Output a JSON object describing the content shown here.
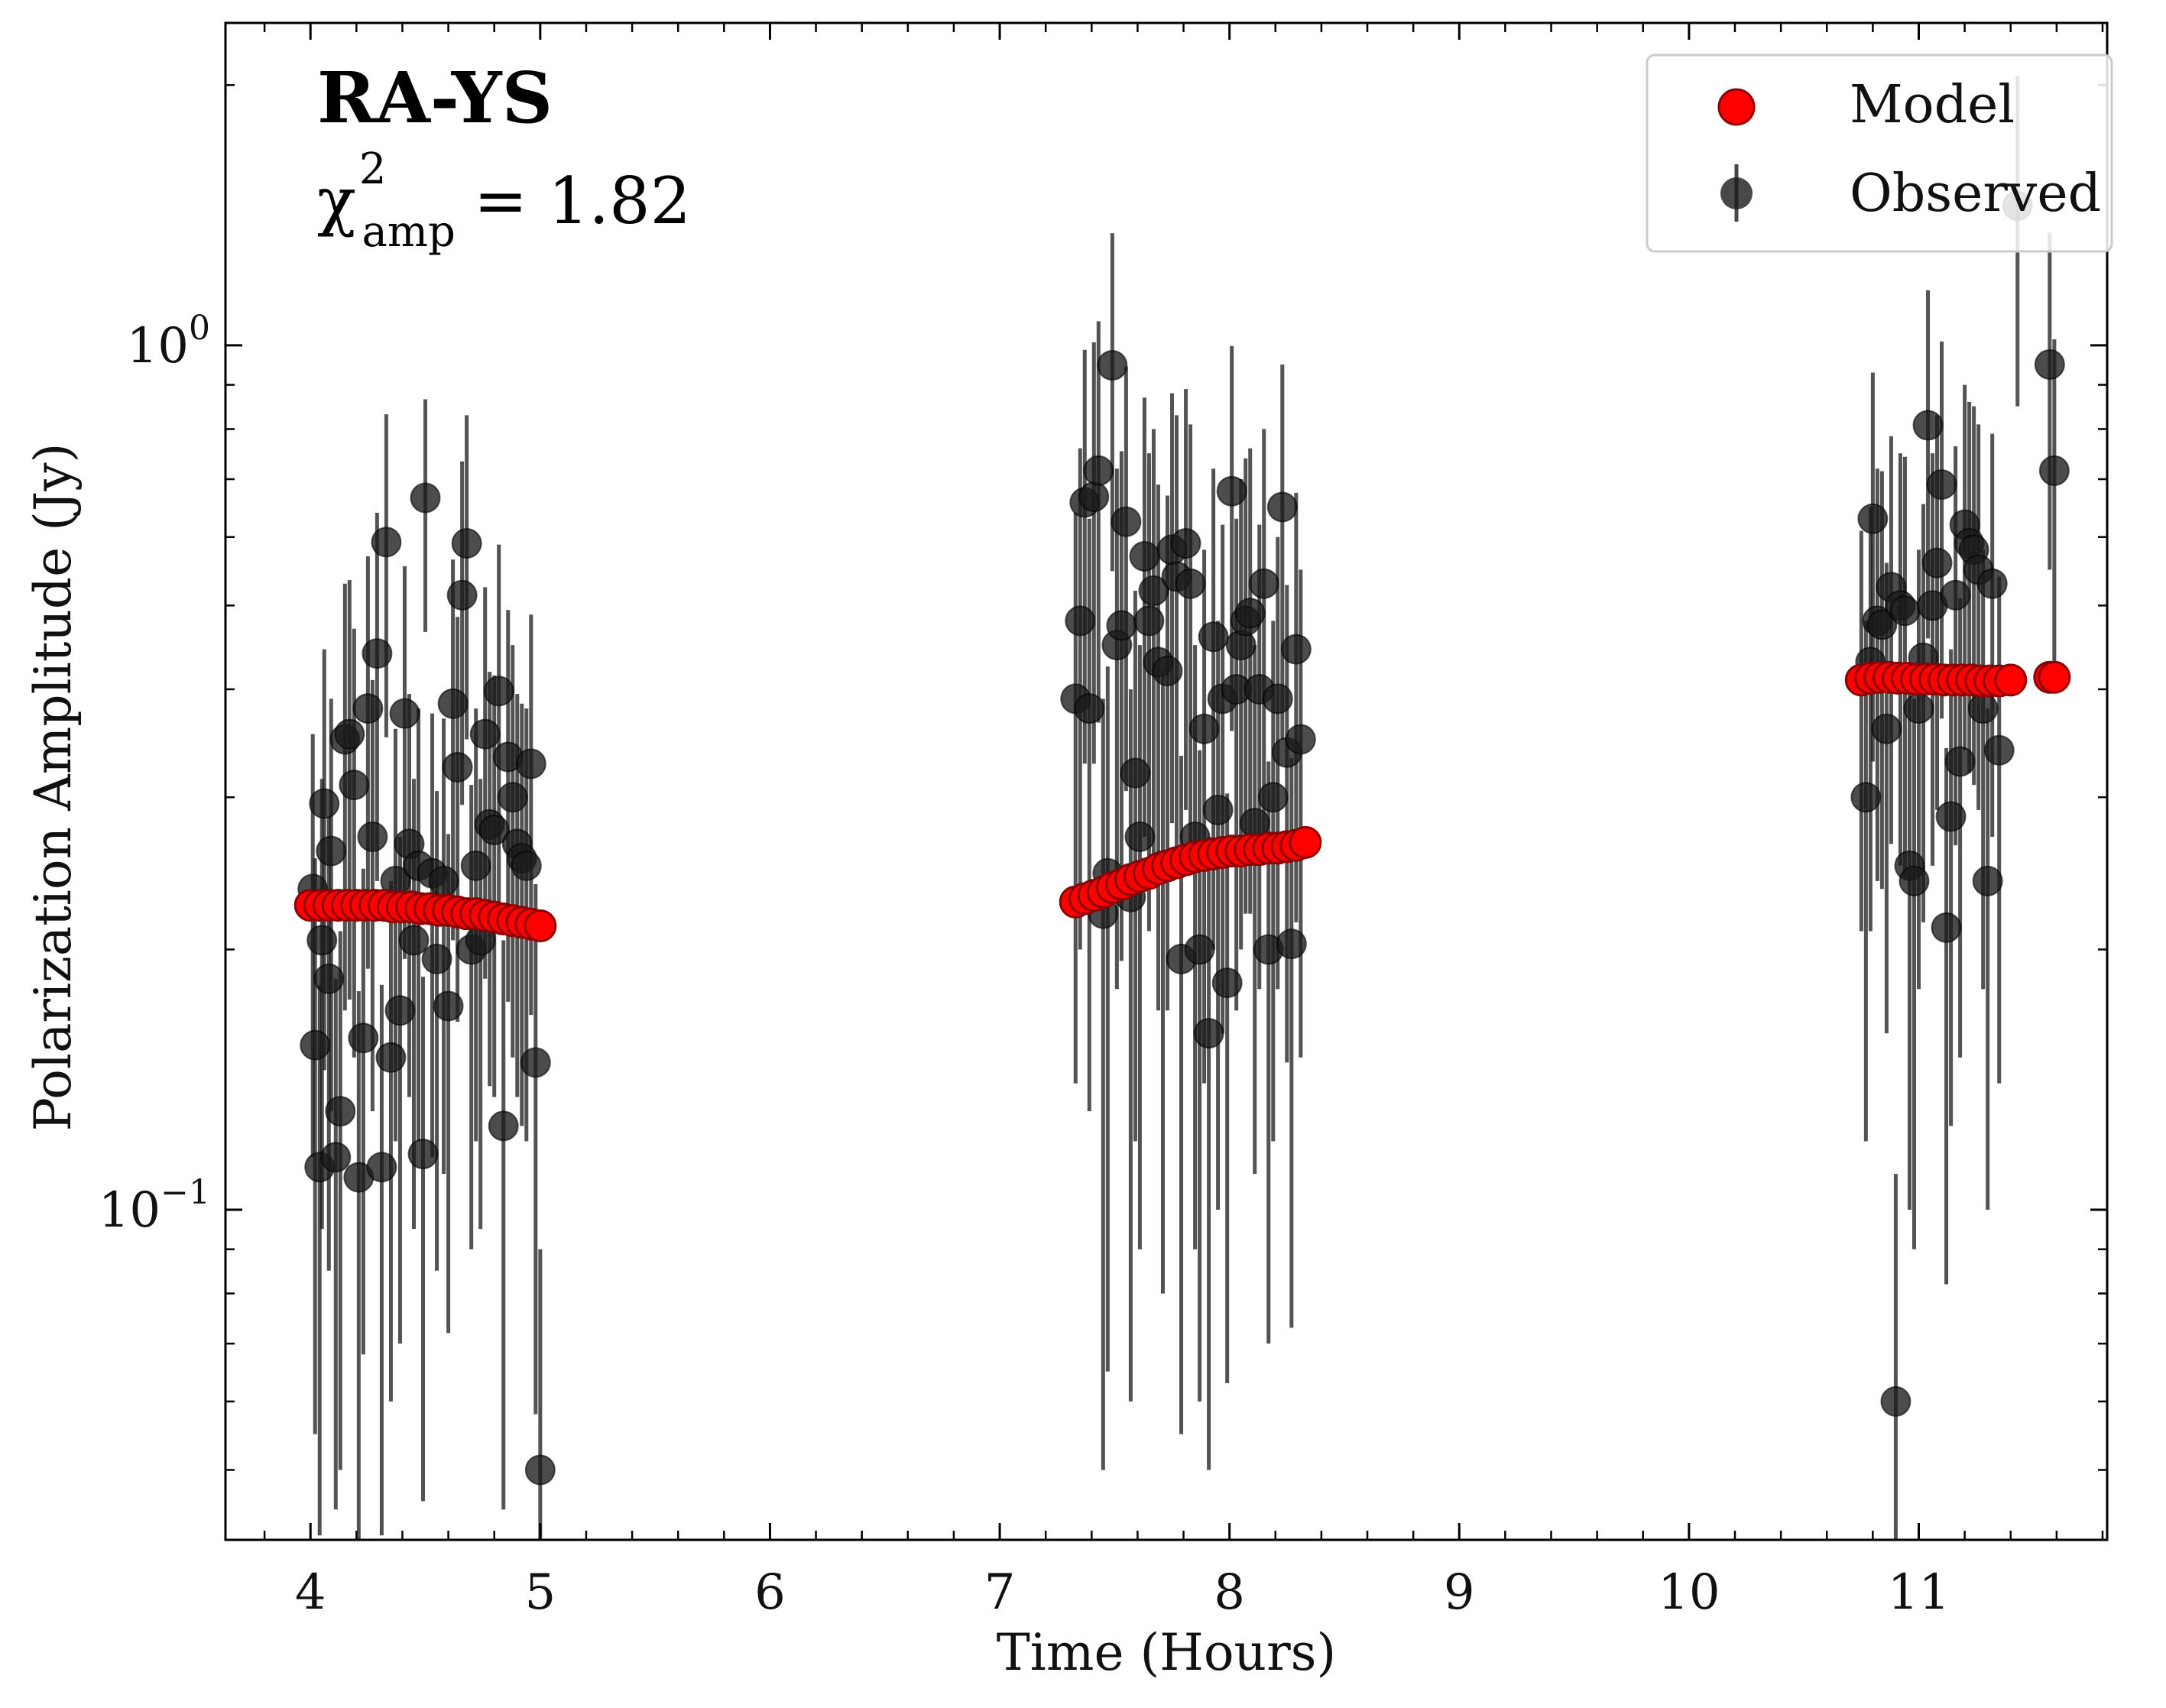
{
  "chart_data": {
    "type": "scatter",
    "title": "RA-YS",
    "annotation": {
      "chi_symbol": "χ",
      "chi_superscript": "2",
      "chi_subscript": "amp",
      "chi_value": "= 1.82"
    },
    "xlabel": "Time (Hours)",
    "ylabel": "Polarization Amplitude (Jy)",
    "xlim": [
      3.63,
      11.82
    ],
    "ylim": [
      0.0415,
      2.36
    ],
    "yscale": "log",
    "x_ticks": [
      4,
      5,
      6,
      7,
      8,
      9,
      10,
      11
    ],
    "x_tick_labels": [
      "4",
      "5",
      "6",
      "7",
      "8",
      "9",
      "10",
      "11"
    ],
    "y_ticks": [
      {
        "value": 1.0,
        "base": "10",
        "exp": "0"
      },
      {
        "value": 0.1,
        "base": "10",
        "exp": "−1"
      }
    ],
    "legend": {
      "position": "top-right",
      "entries": [
        "Model",
        "Observed"
      ]
    },
    "colors": {
      "model": "#ff0000",
      "model_edge": "#8b0000",
      "observed": "#1a1a1a"
    },
    "series": [
      {
        "name": "Model",
        "marker": "circle",
        "x": [
          4.0,
          4.04,
          4.08,
          4.12,
          4.16,
          4.2,
          4.24,
          4.28,
          4.32,
          4.36,
          4.4,
          4.44,
          4.48,
          4.52,
          4.56,
          4.6,
          4.64,
          4.68,
          4.72,
          4.76,
          4.8,
          4.84,
          4.88,
          4.92,
          4.96,
          5.0,
          7.33,
          7.37,
          7.41,
          7.45,
          7.49,
          7.53,
          7.57,
          7.61,
          7.65,
          7.69,
          7.73,
          7.77,
          7.81,
          7.85,
          7.89,
          7.93,
          7.97,
          8.01,
          8.05,
          8.09,
          8.13,
          8.17,
          8.21,
          8.25,
          8.29,
          8.33,
          10.75,
          10.79,
          10.83,
          10.87,
          10.91,
          10.95,
          10.99,
          11.03,
          11.07,
          11.11,
          11.15,
          11.19,
          11.23,
          11.27,
          11.31,
          11.35,
          11.4,
          11.57,
          11.59
        ],
        "y": [
          0.225,
          0.225,
          0.225,
          0.225,
          0.225,
          0.225,
          0.225,
          0.225,
          0.225,
          0.224,
          0.224,
          0.224,
          0.223,
          0.223,
          0.222,
          0.222,
          0.221,
          0.22,
          0.22,
          0.219,
          0.218,
          0.217,
          0.216,
          0.215,
          0.214,
          0.213,
          0.227,
          0.229,
          0.231,
          0.233,
          0.236,
          0.238,
          0.241,
          0.243,
          0.245,
          0.248,
          0.25,
          0.252,
          0.254,
          0.256,
          0.257,
          0.258,
          0.259,
          0.26,
          0.26,
          0.261,
          0.261,
          0.262,
          0.262,
          0.263,
          0.264,
          0.266,
          0.41,
          0.412,
          0.413,
          0.413,
          0.412,
          0.412,
          0.411,
          0.411,
          0.411,
          0.41,
          0.41,
          0.41,
          0.41,
          0.409,
          0.409,
          0.409,
          0.41,
          0.413,
          0.413
        ]
      },
      {
        "name": "Observed",
        "marker": "circle",
        "x": [
          4.01,
          4.02,
          4.04,
          4.05,
          4.06,
          4.08,
          4.09,
          4.11,
          4.13,
          4.15,
          4.17,
          4.19,
          4.21,
          4.23,
          4.25,
          4.27,
          4.29,
          4.31,
          4.33,
          4.35,
          4.37,
          4.39,
          4.41,
          4.43,
          4.45,
          4.47,
          4.49,
          4.5,
          4.53,
          4.55,
          4.58,
          4.6,
          4.62,
          4.64,
          4.66,
          4.68,
          4.7,
          4.72,
          4.74,
          4.76,
          4.78,
          4.8,
          4.82,
          4.84,
          4.86,
          4.88,
          4.9,
          4.92,
          4.94,
          4.96,
          4.98,
          5.0,
          7.33,
          7.35,
          7.37,
          7.39,
          7.41,
          7.43,
          7.45,
          7.47,
          7.49,
          7.51,
          7.53,
          7.55,
          7.57,
          7.59,
          7.61,
          7.63,
          7.65,
          7.67,
          7.69,
          7.71,
          7.73,
          7.75,
          7.77,
          7.79,
          7.81,
          7.83,
          7.85,
          7.87,
          7.89,
          7.91,
          7.93,
          7.95,
          7.97,
          7.99,
          8.01,
          8.03,
          8.05,
          8.07,
          8.09,
          8.11,
          8.13,
          8.15,
          8.17,
          8.19,
          8.21,
          8.23,
          8.25,
          8.27,
          8.29,
          8.31,
          10.75,
          10.77,
          10.79,
          10.8,
          10.82,
          10.84,
          10.86,
          10.88,
          10.9,
          10.92,
          10.94,
          10.96,
          10.98,
          11.0,
          11.02,
          11.04,
          11.06,
          11.08,
          11.1,
          11.12,
          11.14,
          11.16,
          11.18,
          11.2,
          11.22,
          11.24,
          11.26,
          11.28,
          11.3,
          11.32,
          11.35,
          11.43,
          11.57,
          11.59
        ],
        "y": [
          0.235,
          0.155,
          0.112,
          0.205,
          0.295,
          0.185,
          0.26,
          0.115,
          0.13,
          0.35,
          0.355,
          0.31,
          0.109,
          0.158,
          0.38,
          0.27,
          0.44,
          0.112,
          0.592,
          0.15,
          0.24,
          0.17,
          0.375,
          0.265,
          0.205,
          0.25,
          0.116,
          0.666,
          0.245,
          0.195,
          0.24,
          0.172,
          0.385,
          0.325,
          0.514,
          0.59,
          0.2,
          0.25,
          0.205,
          0.355,
          0.279,
          0.275,
          0.398,
          0.125,
          0.334,
          0.3,
          0.265,
          0.255,
          0.25,
          0.328,
          0.148,
          0.05,
          0.39,
          0.48,
          0.658,
          0.38,
          0.668,
          0.716,
          0.22,
          0.245,
          0.948,
          0.45,
          0.474,
          0.625,
          0.23,
          0.32,
          0.27,
          0.57,
          0.48,
          0.52,
          0.43,
          0.25,
          0.42,
          0.58,
          0.54,
          0.195,
          0.59,
          0.53,
          0.27,
          0.2,
          0.36,
          0.16,
          0.46,
          0.29,
          0.39,
          0.183,
          0.678,
          0.4,
          0.45,
          0.48,
          0.49,
          0.28,
          0.4,
          0.53,
          0.2,
          0.3,
          0.39,
          0.65,
          0.338,
          0.203,
          0.445,
          0.35,
          0.41,
          0.3,
          0.43,
          0.63,
          0.48,
          0.475,
          0.36,
          0.525,
          0.06,
          0.5,
          0.493,
          0.25,
          0.24,
          0.38,
          0.435,
          0.808,
          0.5,
          0.56,
          0.69,
          0.212,
          0.285,
          0.514,
          0.33,
          0.62,
          0.59,
          0.58,
          0.55,
          0.38,
          0.24,
          0.53,
          0.34,
          1.45,
          0.95,
          0.716
        ],
        "y_err": [
          0.12,
          0.1,
          0.07,
          0.11,
          0.15,
          0.1,
          0.13,
          0.07,
          0.08,
          0.18,
          0.18,
          0.16,
          0.07,
          0.09,
          0.19,
          0.14,
          0.2,
          0.07,
          0.24,
          0.09,
          0.12,
          0.1,
          0.18,
          0.13,
          0.11,
          0.13,
          0.07,
          0.2,
          0.13,
          0.11,
          0.13,
          0.1,
          0.18,
          0.16,
          0.22,
          0.24,
          0.11,
          0.13,
          0.11,
          0.17,
          0.14,
          0.14,
          0.19,
          0.08,
          0.16,
          0.15,
          0.13,
          0.13,
          0.13,
          0.16,
          0.09,
          0.04,
          0.25,
          0.28,
          0.33,
          0.25,
          0.34,
          0.35,
          0.17,
          0.18,
          0.4,
          0.27,
          0.28,
          0.32,
          0.17,
          0.2,
          0.18,
          0.3,
          0.27,
          0.28,
          0.26,
          0.17,
          0.25,
          0.3,
          0.29,
          0.14,
          0.3,
          0.28,
          0.18,
          0.14,
          0.22,
          0.11,
          0.26,
          0.19,
          0.23,
          0.12,
          0.32,
          0.23,
          0.25,
          0.26,
          0.27,
          0.17,
          0.22,
          0.27,
          0.13,
          0.18,
          0.21,
          0.3,
          0.19,
          0.13,
          0.23,
          0.2,
          0.2,
          0.18,
          0.22,
          0.3,
          0.24,
          0.24,
          0.2,
          0.26,
          0.05,
          0.25,
          0.25,
          0.15,
          0.15,
          0.2,
          0.22,
          0.35,
          0.25,
          0.27,
          0.32,
          0.13,
          0.16,
          0.25,
          0.18,
          0.28,
          0.27,
          0.27,
          0.26,
          0.2,
          0.14,
          0.26,
          0.2,
          0.6,
          0.4,
          0.3
        ]
      }
    ]
  }
}
